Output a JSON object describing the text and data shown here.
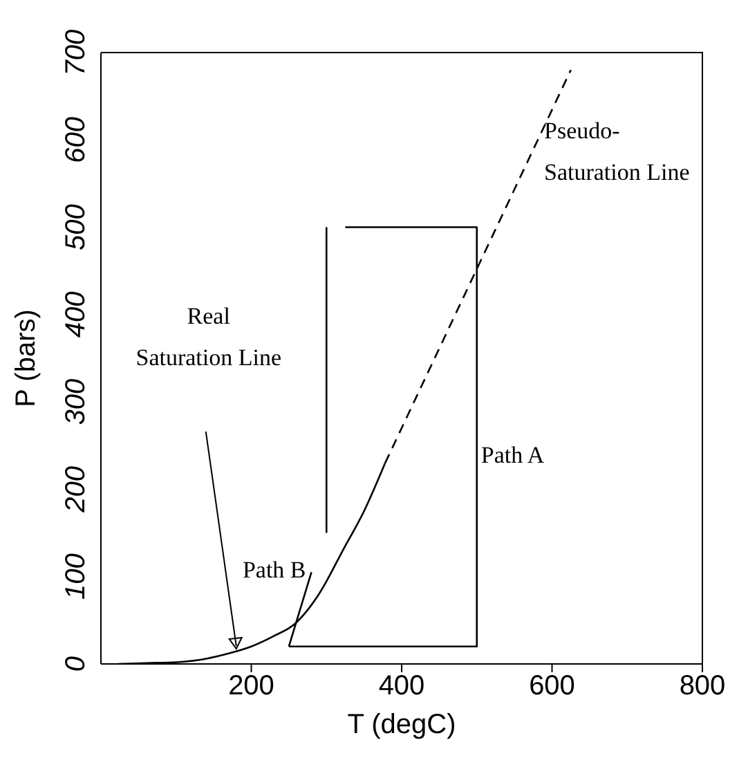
{
  "chart_data": {
    "type": "line",
    "xlabel": "T (degC)",
    "ylabel": "P (bars)",
    "xlim": [
      0,
      800
    ],
    "xticks": [
      200,
      400,
      600,
      800
    ],
    "ylim": [
      0,
      700
    ],
    "yticks": [
      0,
      100,
      200,
      300,
      400,
      500,
      600,
      700
    ],
    "series": [
      {
        "color": "#000000",
        "line_style": "solid",
        "x": [
          23,
          60,
          100,
          140,
          170,
          200,
          230,
          258,
          290,
          323,
          350,
          378
        ],
        "values": [
          0,
          1,
          2,
          6,
          12,
          20,
          32,
          46,
          80,
          132,
          175,
          230
        ]
      },
      {
        "color": "#000000",
        "line_style": "dashed",
        "x": [
          378,
          625
        ],
        "values": [
          230,
          680
        ]
      },
      {
        "color": "#000000",
        "line_style": "solid",
        "x": [
          325,
          500,
          500,
          250
        ],
        "values": [
          500,
          500,
          20,
          20
        ]
      },
      {
        "color": "#000000",
        "line_style": "solid",
        "x": [
          300,
          300
        ],
        "values": [
          500,
          150
        ]
      },
      {
        "color": "#000000",
        "line_style": "solid",
        "x": [
          280,
          250
        ],
        "values": [
          105,
          20
        ]
      }
    ],
    "annotations": [
      "Real\nSaturation Line",
      {
        "text": "Pseudo-\nSaturation Line",
        "x": 560,
        "y": 570
      },
      {
        "text": "Path A",
        "x": 500,
        "y": 240
      },
      {
        "text": "Path B",
        "x": 280,
        "y": 105
      }
    ]
  }
}
